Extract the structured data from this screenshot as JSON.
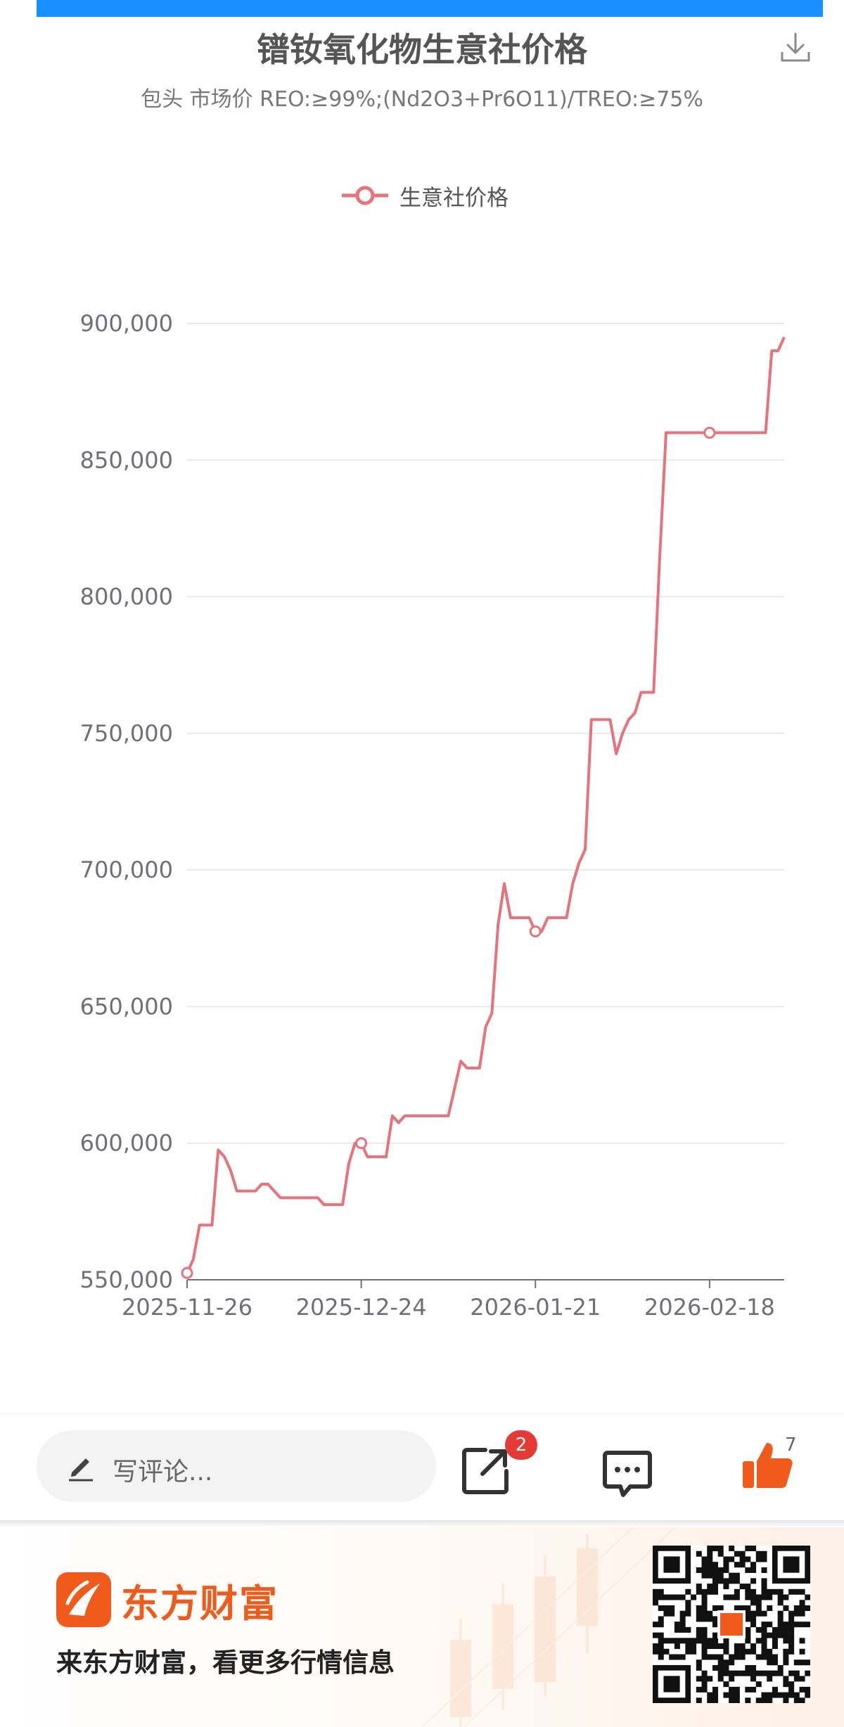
{
  "header": {
    "title": "镨钕氧化物生意社价格",
    "subtitle": "包头 市场价 REO:≥99%;(Nd2O3+Pr6O11)/TREO:≥75%"
  },
  "legend": {
    "label": "生意社价格"
  },
  "chart_data": {
    "type": "line",
    "title": "镨钕氧化物生意社价格",
    "subtitle": "包头 市场价 REO:≥99%;(Nd2O3+Pr6O11)/TREO:≥75%",
    "x_ticks": [
      "2025-11-26",
      "2025-12-24",
      "2026-01-21",
      "2026-02-18"
    ],
    "y_ticks": [
      "550,000",
      "600,000",
      "650,000",
      "700,000",
      "750,000",
      "800,000",
      "850,000",
      "900,000"
    ],
    "ylim": [
      550000,
      900000
    ],
    "grid": true,
    "legend_position": "top",
    "series": [
      {
        "name": "生意社价格",
        "color": "#e8727a",
        "x": [
          "2025-11-26",
          "2025-11-27",
          "2025-11-28",
          "2025-11-29",
          "2025-11-30",
          "2025-12-01",
          "2025-12-02",
          "2025-12-03",
          "2025-12-04",
          "2025-12-05",
          "2025-12-06",
          "2025-12-07",
          "2025-12-08",
          "2025-12-09",
          "2025-12-10",
          "2025-12-11",
          "2025-12-12",
          "2025-12-13",
          "2025-12-14",
          "2025-12-15",
          "2025-12-16",
          "2025-12-17",
          "2025-12-18",
          "2025-12-19",
          "2025-12-20",
          "2025-12-21",
          "2025-12-22",
          "2025-12-23",
          "2025-12-24",
          "2025-12-25",
          "2025-12-26",
          "2025-12-27",
          "2025-12-28",
          "2025-12-29",
          "2025-12-30",
          "2025-12-31",
          "2026-01-01",
          "2026-01-02",
          "2026-01-03",
          "2026-01-04",
          "2026-01-05",
          "2026-01-06",
          "2026-01-07",
          "2026-01-08",
          "2026-01-09",
          "2026-01-10",
          "2026-01-11",
          "2026-01-12",
          "2026-01-13",
          "2026-01-14",
          "2026-01-15",
          "2026-01-16",
          "2026-01-17",
          "2026-01-18",
          "2026-01-19",
          "2026-01-20",
          "2026-01-21",
          "2026-01-22",
          "2026-01-23",
          "2026-01-24",
          "2026-01-25",
          "2026-01-26",
          "2026-01-27",
          "2026-01-28",
          "2026-01-29",
          "2026-01-30",
          "2026-01-31",
          "2026-02-01",
          "2026-02-02",
          "2026-02-03",
          "2026-02-04",
          "2026-02-05",
          "2026-02-06",
          "2026-02-07",
          "2026-02-08",
          "2026-02-09",
          "2026-02-10",
          "2026-02-11",
          "2026-02-12",
          "2026-02-13",
          "2026-02-14",
          "2026-02-15",
          "2026-02-16",
          "2026-02-17",
          "2026-02-18",
          "2026-02-19",
          "2026-02-20",
          "2026-02-21",
          "2026-02-22",
          "2026-02-23",
          "2026-02-24",
          "2026-02-25",
          "2026-02-26",
          "2026-02-27",
          "2026-02-28",
          "2026-03-01",
          "2026-03-02"
        ],
        "values": [
          552500,
          557500,
          570000,
          570000,
          570000,
          597500,
          595000,
          590000,
          582500,
          582500,
          582500,
          582500,
          585000,
          585000,
          582500,
          580000,
          580000,
          580000,
          580000,
          580000,
          580000,
          580000,
          577500,
          577500,
          577500,
          577500,
          592500,
          600000,
          600000,
          595000,
          595000,
          595000,
          595000,
          610000,
          607500,
          610000,
          610000,
          610000,
          610000,
          610000,
          610000,
          610000,
          610000,
          620000,
          630000,
          627500,
          627500,
          627500,
          642500,
          647500,
          680000,
          695000,
          682500,
          682500,
          682500,
          682500,
          677500,
          677500,
          682500,
          682500,
          682500,
          682500,
          695000,
          702500,
          707500,
          755000,
          755000,
          755000,
          755000,
          742500,
          750000,
          755000,
          757500,
          765000,
          765000,
          765000,
          815000,
          860000,
          860000,
          860000,
          860000,
          860000,
          860000,
          860000,
          860000,
          860000,
          860000,
          860000,
          860000,
          860000,
          860000,
          860000,
          860000,
          860000,
          890000,
          890000,
          895000
        ],
        "marked_points": [
          "2025-11-26",
          "2025-12-24",
          "2026-01-21",
          "2026-02-18"
        ]
      }
    ]
  },
  "toolbar": {
    "comment_placeholder": "写评论...",
    "share_badge": "2",
    "like_count": "7"
  },
  "ad": {
    "brand": "东方财富",
    "slogan": "来东方财富，看更多行情信息"
  }
}
